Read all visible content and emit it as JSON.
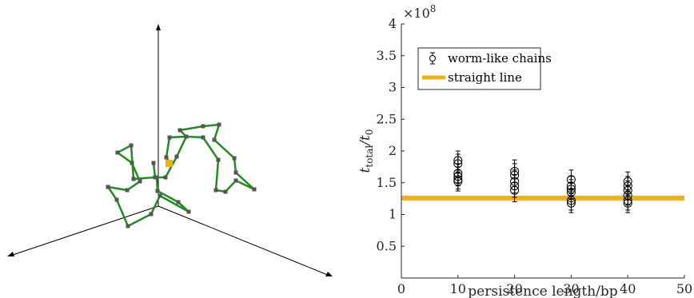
{
  "chart_data": [
    {
      "type": "diagram",
      "description": "3D random-walk chain with 3 axes",
      "colors": {
        "axes": "#000000",
        "chain": "#228b22",
        "nodes": "#555555",
        "start_node": "#edb120"
      }
    },
    {
      "type": "scatter",
      "xlabel": "persistence length/bp",
      "ylabel": "t_total/t_0",
      "ylabel_main": "t",
      "ylabel_sub1": "total",
      "ylabel_div": "/t",
      "ylabel_sub2": "0",
      "y_multiplier": "×10",
      "y_multiplier_exp": "8",
      "xlim": [
        0,
        50
      ],
      "ylim": [
        0,
        4
      ],
      "x_ticks": [
        "0",
        "10",
        "20",
        "30",
        "40",
        "50"
      ],
      "y_ticks": [
        "0.5",
        "1",
        "1.5",
        "2",
        "2.5",
        "3",
        "3.5",
        "4"
      ],
      "legend": {
        "position": "top-left",
        "entries": [
          "worm-like chains",
          "straight line"
        ]
      },
      "series": [
        {
          "name": "worm-like chains",
          "marker": "circle",
          "color": "#000000",
          "points": [
            {
              "x": 10,
              "y": 1.85,
              "err": 0.15
            },
            {
              "x": 10,
              "y": 1.8,
              "err": 0.15
            },
            {
              "x": 10,
              "y": 1.65,
              "err": 0.15
            },
            {
              "x": 10,
              "y": 1.6,
              "err": 0.15
            },
            {
              "x": 10,
              "y": 1.55,
              "err": 0.15
            },
            {
              "x": 10,
              "y": 1.52,
              "err": 0.15
            },
            {
              "x": 20,
              "y": 1.68,
              "err": 0.18
            },
            {
              "x": 20,
              "y": 1.62,
              "err": 0.18
            },
            {
              "x": 20,
              "y": 1.52,
              "err": 0.18
            },
            {
              "x": 20,
              "y": 1.45,
              "err": 0.18
            },
            {
              "x": 20,
              "y": 1.38,
              "err": 0.18
            },
            {
              "x": 30,
              "y": 1.55,
              "err": 0.15
            },
            {
              "x": 30,
              "y": 1.45,
              "err": 0.15
            },
            {
              "x": 30,
              "y": 1.4,
              "err": 0.15
            },
            {
              "x": 30,
              "y": 1.35,
              "err": 0.15
            },
            {
              "x": 30,
              "y": 1.22,
              "err": 0.15
            },
            {
              "x": 30,
              "y": 1.18,
              "err": 0.15
            },
            {
              "x": 40,
              "y": 1.52,
              "err": 0.15
            },
            {
              "x": 40,
              "y": 1.45,
              "err": 0.15
            },
            {
              "x": 40,
              "y": 1.38,
              "err": 0.15
            },
            {
              "x": 40,
              "y": 1.3,
              "err": 0.15
            },
            {
              "x": 40,
              "y": 1.22,
              "err": 0.15
            },
            {
              "x": 40,
              "y": 1.18,
              "err": 0.15
            }
          ]
        },
        {
          "name": "straight line",
          "type": "hline",
          "y": 1.26,
          "color": "#edb120"
        }
      ]
    }
  ]
}
